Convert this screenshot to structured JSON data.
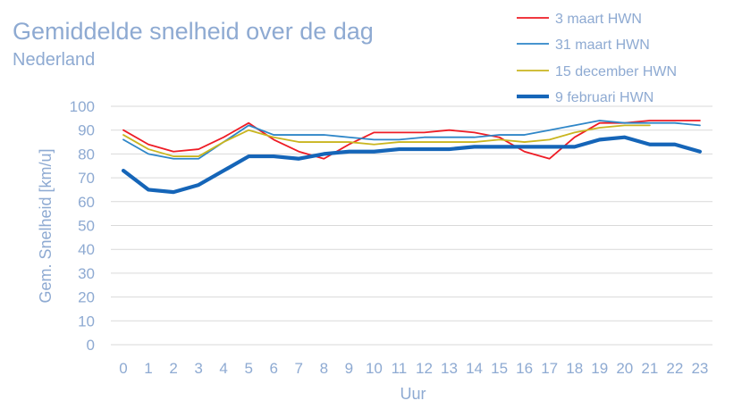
{
  "chart_data": {
    "type": "line",
    "title": "Gemiddelde snelheid over de dag",
    "subtitle": "Nederland",
    "xlabel": "Uur",
    "ylabel": "Gem. Snelheid [km/u]",
    "x": [
      0,
      1,
      2,
      3,
      4,
      5,
      6,
      7,
      8,
      9,
      10,
      11,
      12,
      13,
      14,
      15,
      16,
      17,
      18,
      19,
      20,
      21,
      22,
      23
    ],
    "ylim": [
      0,
      100
    ],
    "yticks": [
      0,
      10,
      20,
      30,
      40,
      50,
      60,
      70,
      80,
      90,
      100
    ],
    "grid": true,
    "legend_position": "top-right",
    "series": [
      {
        "name": "3 maart HWN",
        "color": "#ee1c25",
        "values": [
          90,
          84,
          81,
          82,
          87,
          93,
          86,
          81,
          78,
          84,
          89,
          89,
          89,
          90,
          89,
          87,
          81,
          78,
          87,
          93,
          93,
          94,
          94,
          94
        ]
      },
      {
        "name": "31 maart HWN",
        "color": "#2e86c8",
        "values": [
          86,
          80,
          78,
          78,
          85,
          92,
          88,
          88,
          88,
          87,
          86,
          86,
          87,
          87,
          87,
          88,
          88,
          90,
          92,
          94,
          93,
          93,
          93,
          92
        ]
      },
      {
        "name": "15 december HWN",
        "color": "#c9b51f",
        "values": [
          88,
          82,
          79,
          79,
          85,
          90,
          87,
          85,
          85,
          85,
          84,
          85,
          85,
          85,
          85,
          86,
          85,
          86,
          89,
          91,
          92,
          92,
          null,
          null
        ]
      },
      {
        "name": "9 februari HWN",
        "color": "#1565b8",
        "values": [
          73,
          65,
          64,
          67,
          73,
          79,
          79,
          78,
          80,
          81,
          81,
          82,
          82,
          82,
          83,
          83,
          83,
          83,
          83,
          86,
          87,
          84,
          84,
          81
        ]
      }
    ]
  }
}
